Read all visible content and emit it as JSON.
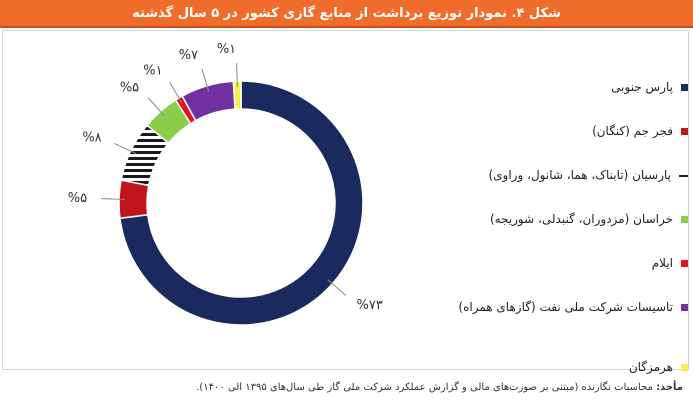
{
  "header": {
    "title": "شکل ۴. نمودار توزیع برداشت از منابع گازی کشور در ۵ سال گذشته"
  },
  "source": {
    "prefix": "مأخذ:",
    "text": "محاسبات نگارنده (مبتنی بر صورت‌های مالی و گزارش عملکرد شرکت ملی گاز طی سال‌های ۱۳۹۵ الی ۱۴۰۰)."
  },
  "legend": {
    "items": [
      {
        "label": "پارس جنوبی",
        "color": "#1a2a5e",
        "dash": false
      },
      {
        "label": "فجر جم (کنگان)",
        "color": "#c0161b",
        "dash": false
      },
      {
        "label": "پارسیان (تابناک، هما، شانول، وراوی)",
        "color": "#222222",
        "dash": true
      },
      {
        "label": "خراسان (مزدوران، گنبدلی، شوریجه)",
        "color": "#8ccd4b",
        "dash": false
      },
      {
        "label": "ایلام",
        "color": "#e0141c",
        "dash": false
      },
      {
        "label": "تاسیسات شرکت ملی نفت (گازهای همراه)",
        "color": "#7030a0",
        "dash": false
      },
      {
        "label": "هرمزگان",
        "color": "#f5ef4a",
        "dash": false
      }
    ]
  },
  "chart_data": {
    "type": "pie",
    "donut": true,
    "title": "شکل ۴. نمودار توزیع برداشت از منابع گازی کشور در ۵ سال گذشته",
    "legend_position": "right",
    "slices": [
      {
        "name": "پارس جنوبی",
        "value": 73,
        "label": "%۷۳",
        "color": "#1a2a5e",
        "pattern": "solid"
      },
      {
        "name": "فجر جم (کنگان)",
        "value": 5,
        "label": "%۵",
        "color": "#c0161b",
        "pattern": "solid"
      },
      {
        "name": "پارسیان (تابناک، هما، شانول، وراوی)",
        "value": 8,
        "label": "%۸",
        "color": "#222222",
        "pattern": "stripes"
      },
      {
        "name": "خراسان (مزدوران، گنبدلی، شوریجه)",
        "value": 5,
        "label": "%۵",
        "color": "#8ccd4b",
        "pattern": "solid"
      },
      {
        "name": "ایلام",
        "value": 1,
        "label": "%۱",
        "color": "#e0141c",
        "pattern": "solid"
      },
      {
        "name": "تاسیسات شرکت ملی نفت (گازهای همراه)",
        "value": 7,
        "label": "%۷",
        "color": "#7030a0",
        "pattern": "solid"
      },
      {
        "name": "هرمزگان",
        "value": 1,
        "label": "%۱",
        "color": "#f5ef4a",
        "pattern": "solid"
      }
    ]
  }
}
